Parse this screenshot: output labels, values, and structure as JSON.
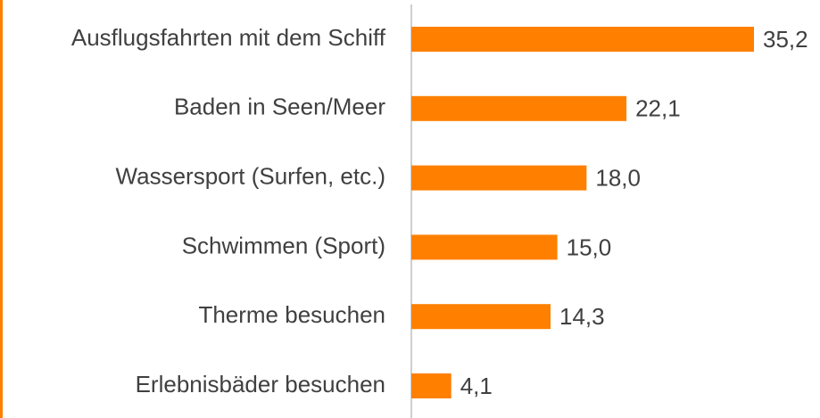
{
  "chart_data": {
    "type": "bar",
    "orientation": "horizontal",
    "categories": [
      "Ausflugsfahrten mit dem Schiff",
      "Baden in Seen/Meer",
      "Wassersport (Surfen, etc.)",
      "Schwimmen (Sport)",
      "Therme besuchen",
      "Erlebnisbäder besuchen"
    ],
    "values": [
      35.2,
      22.1,
      18.0,
      15.0,
      14.3,
      4.1
    ],
    "value_labels": [
      "35,2",
      "22,1",
      "18,0",
      "15,0",
      "14,3",
      "4,1"
    ],
    "color": "#ff7f00"
  }
}
